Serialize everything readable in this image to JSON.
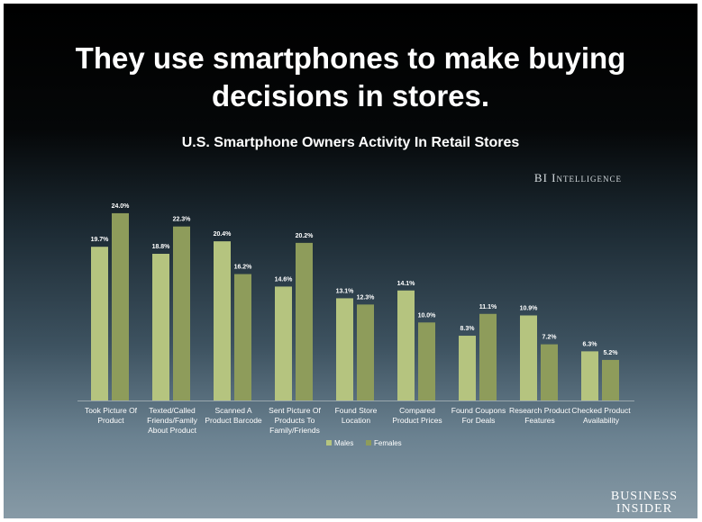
{
  "headline": "They use smartphones to make buying decisions in stores.",
  "brand": "BI Intelligence",
  "publisher": {
    "line1": "BUSINESS",
    "line2": "INSIDER"
  },
  "colors": {
    "males": "#b5c47f",
    "females": "#8e9c5b",
    "label": "#ffffff"
  },
  "chart_data": {
    "type": "bar",
    "title": "U.S. Smartphone Owners Activity In Retail Stores",
    "categories": [
      [
        "Took Picture Of",
        "Product"
      ],
      [
        "Texted/Called",
        "Friends/Family",
        "About Product"
      ],
      [
        "Scanned A",
        "Product Barcode"
      ],
      [
        "Sent Picture Of",
        "Products To",
        "Family/Friends"
      ],
      [
        "Found Store",
        "Location"
      ],
      [
        "Compared",
        "Product Prices"
      ],
      [
        "Found Coupons",
        "For Deals"
      ],
      [
        "Research Product",
        "Features"
      ],
      [
        "Checked Product",
        "Availability"
      ]
    ],
    "series": [
      {
        "name": "Males",
        "values": [
          19.7,
          18.8,
          20.4,
          14.6,
          13.1,
          14.1,
          8.3,
          10.9,
          6.3
        ],
        "labels": [
          "19.7%",
          "18.8%",
          "20.4%",
          "14.6%",
          "13.1%",
          "14.1%",
          "8.3%",
          "10.9%",
          "6.3%"
        ]
      },
      {
        "name": "Females",
        "values": [
          24.0,
          22.3,
          16.2,
          20.2,
          12.3,
          10.0,
          11.1,
          7.2,
          5.2
        ],
        "labels": [
          "24.0%",
          "22.3%",
          "16.2%",
          "20.2%",
          "12.3%",
          "10.0%",
          "11.1%",
          "7.2%",
          "5.2%"
        ]
      }
    ],
    "legend_position": "bottom",
    "grid": false,
    "ylim": [
      0,
      25
    ]
  }
}
